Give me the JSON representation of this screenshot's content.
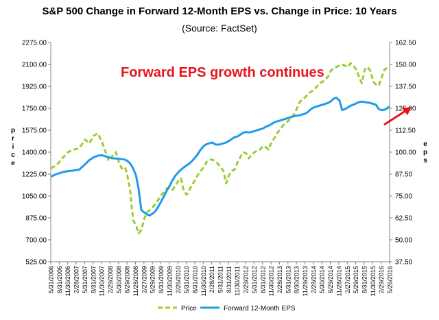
{
  "chart_data": {
    "type": "line",
    "title": "S&P 500 Change in Forward 12-Month EPS vs. Change in Price: 10 Years",
    "subtitle": "(Source: FactSet)",
    "ylabel": "Price",
    "y2label": "EPS",
    "annotation": "Forward EPS growth continues",
    "ylim": [
      525,
      2275
    ],
    "y2lim": [
      37.5,
      162.5
    ],
    "y_ticks": [
      "525.00",
      "700.00",
      "875.00",
      "1050.00",
      "1225.00",
      "1400.00",
      "1575.00",
      "1750.00",
      "1925.00",
      "2100.00",
      "2275.00"
    ],
    "y2_ticks": [
      "37.50",
      "50.00",
      "62.50",
      "75.00",
      "87.50",
      "100.00",
      "112.50",
      "125.00",
      "137.50",
      "150.00",
      "162.50"
    ],
    "x_ticks": [
      "5/31/2006",
      "8/31/2006",
      "11/30/2006",
      "2/28/2007",
      "5/31/2007",
      "8/31/2007",
      "11/30/2007",
      "2/29/2008",
      "5/30/2008",
      "8/29/2008",
      "11/28/2008",
      "2/27/2009",
      "5/29/2009",
      "8/31/2009",
      "11/30/2009",
      "2/26/2010",
      "5/31/2010",
      "8/31/2010",
      "11/30/2010",
      "2/28/2011",
      "5/31/2011",
      "8/31/2011",
      "11/30/2011",
      "2/29/2012",
      "5/31/2012",
      "8/31/2012",
      "11/30/2012",
      "2/28/2013",
      "5/31/2013",
      "8/30/2013",
      "11/29/2013",
      "2/28/2014",
      "5/30/2014",
      "8/29/2014",
      "11/28/2014",
      "2/27/2015",
      "5/29/2015",
      "8/31/2015",
      "11/30/2015",
      "2/29/2016",
      "5/26/2016"
    ],
    "grid": false,
    "legend_position": "bottom",
    "series": [
      {
        "name": "Price",
        "axis": "left",
        "color": "#9acd32",
        "style": "dashed",
        "x": [
          2006.41,
          2006.58,
          2006.75,
          2006.92,
          2007.08,
          2007.25,
          2007.42,
          2007.55,
          2007.67,
          2007.8,
          2007.92,
          2008.0,
          2008.12,
          2008.2,
          2008.33,
          2008.42,
          2008.5,
          2008.6,
          2008.67,
          2008.75,
          2008.8,
          2008.85,
          2008.92,
          2009.0,
          2009.08,
          2009.17,
          2009.25,
          2009.33,
          2009.42,
          2009.5,
          2009.58,
          2009.67,
          2009.75,
          2009.83,
          2009.92,
          2010.0,
          2010.08,
          2010.17,
          2010.25,
          2010.33,
          2010.42,
          2010.5,
          2010.58,
          2010.67,
          2010.75,
          2010.83,
          2010.92,
          2011.0,
          2011.08,
          2011.17,
          2011.25,
          2011.33,
          2011.42,
          2011.5,
          2011.58,
          2011.67,
          2011.75,
          2011.83,
          2011.92,
          2012.0,
          2012.08,
          2012.17,
          2012.25,
          2012.33,
          2012.42,
          2012.5,
          2012.58,
          2012.67,
          2012.75,
          2012.83,
          2012.92,
          2013.0,
          2013.08,
          2013.17,
          2013.25,
          2013.33,
          2013.42,
          2013.5,
          2013.58,
          2013.67,
          2013.75,
          2013.83,
          2013.92,
          2014.0,
          2014.08,
          2014.17,
          2014.25,
          2014.33,
          2014.42,
          2014.5,
          2014.58,
          2014.67,
          2014.75,
          2014.83,
          2014.92,
          2015.0,
          2015.08,
          2015.17,
          2015.25,
          2015.33,
          2015.42,
          2015.5,
          2015.58,
          2015.67,
          2015.75,
          2015.83,
          2015.92,
          2016.0,
          2016.08,
          2016.17,
          2016.25,
          2016.33,
          2016.4
        ],
        "y": [
          1270,
          1295,
          1350,
          1400,
          1420,
          1430,
          1500,
          1470,
          1530,
          1550,
          1480,
          1420,
          1330,
          1360,
          1400,
          1320,
          1270,
          1280,
          1210,
          1100,
          950,
          850,
          820,
          750,
          780,
          870,
          920,
          940,
          960,
          990,
          1020,
          1060,
          1080,
          1110,
          1120,
          1100,
          1130,
          1170,
          1190,
          1090,
          1060,
          1100,
          1140,
          1180,
          1220,
          1250,
          1280,
          1320,
          1340,
          1340,
          1330,
          1310,
          1280,
          1250,
          1150,
          1220,
          1250,
          1260,
          1320,
          1360,
          1400,
          1390,
          1350,
          1380,
          1400,
          1410,
          1420,
          1450,
          1440,
          1420,
          1480,
          1510,
          1550,
          1580,
          1610,
          1630,
          1650,
          1680,
          1700,
          1750,
          1800,
          1820,
          1840,
          1870,
          1880,
          1900,
          1920,
          1950,
          1960,
          1980,
          2000,
          2050,
          2070,
          2080,
          2090,
          2100,
          2090,
          2080,
          2110,
          2090,
          2060,
          2000,
          1950,
          2060,
          2080,
          2050,
          1960,
          1940,
          1930,
          2000,
          2060,
          2070,
          2080
        ]
      },
      {
        "name": "Forward 12-Month EPS",
        "axis": "right",
        "color": "#1e9be8",
        "style": "solid",
        "x": [
          2006.41,
          2006.58,
          2006.75,
          2006.92,
          2007.08,
          2007.25,
          2007.42,
          2007.55,
          2007.67,
          2007.8,
          2007.92,
          2008.0,
          2008.12,
          2008.25,
          2008.42,
          2008.58,
          2008.67,
          2008.75,
          2008.83,
          2008.92,
          2009.0,
          2009.08,
          2009.17,
          2009.25,
          2009.33,
          2009.42,
          2009.5,
          2009.58,
          2009.67,
          2009.75,
          2009.83,
          2009.92,
          2010.0,
          2010.08,
          2010.17,
          2010.25,
          2010.33,
          2010.42,
          2010.5,
          2010.58,
          2010.67,
          2010.75,
          2010.83,
          2010.92,
          2011.0,
          2011.08,
          2011.17,
          2011.25,
          2011.33,
          2011.42,
          2011.5,
          2011.58,
          2011.67,
          2011.75,
          2011.83,
          2011.92,
          2012.0,
          2012.08,
          2012.17,
          2012.25,
          2012.33,
          2012.42,
          2012.5,
          2012.58,
          2012.67,
          2012.75,
          2012.83,
          2012.92,
          2013.0,
          2013.08,
          2013.17,
          2013.25,
          2013.33,
          2013.42,
          2013.5,
          2013.58,
          2013.67,
          2013.75,
          2013.83,
          2013.92,
          2014.0,
          2014.08,
          2014.17,
          2014.25,
          2014.33,
          2014.42,
          2014.5,
          2014.58,
          2014.67,
          2014.75,
          2014.83,
          2014.92,
          2015.0,
          2015.08,
          2015.17,
          2015.25,
          2015.33,
          2015.42,
          2015.5,
          2015.58,
          2015.67,
          2015.75,
          2015.83,
          2015.92,
          2016.0,
          2016.08,
          2016.17,
          2016.25,
          2016.33,
          2016.4
        ],
        "y": [
          86.0,
          87.5,
          88.5,
          89.2,
          89.5,
          90.0,
          93.0,
          95.5,
          97.0,
          98.0,
          98.2,
          97.8,
          97.0,
          96.5,
          96.2,
          95.8,
          95.0,
          93.5,
          91.0,
          87.0,
          79.0,
          67.0,
          65.5,
          64.5,
          64.0,
          65.0,
          66.5,
          69.0,
          72.0,
          75.0,
          78.0,
          81.0,
          84.0,
          86.5,
          88.5,
          90.0,
          91.2,
          92.5,
          93.5,
          95.0,
          97.0,
          99.0,
          101.5,
          103.5,
          104.5,
          105.0,
          105.5,
          104.5,
          104.2,
          104.5,
          105.0,
          105.5,
          106.5,
          107.5,
          108.5,
          109.0,
          110.0,
          111.0,
          111.5,
          111.2,
          111.5,
          112.0,
          112.5,
          113.0,
          113.5,
          114.5,
          115.0,
          116.0,
          117.0,
          117.5,
          118.0,
          118.5,
          119.0,
          119.5,
          120.0,
          120.5,
          120.8,
          121.0,
          121.5,
          122.0,
          123.0,
          124.5,
          125.5,
          126.0,
          126.5,
          127.0,
          127.5,
          128.0,
          129.0,
          130.5,
          131.0,
          129.5,
          124.0,
          124.5,
          125.5,
          126.5,
          127.0,
          127.8,
          128.5,
          128.8,
          128.5,
          128.2,
          128.0,
          127.5,
          127.0,
          124.5,
          124.0,
          124.2,
          125.0,
          126.0
        ]
      }
    ]
  }
}
